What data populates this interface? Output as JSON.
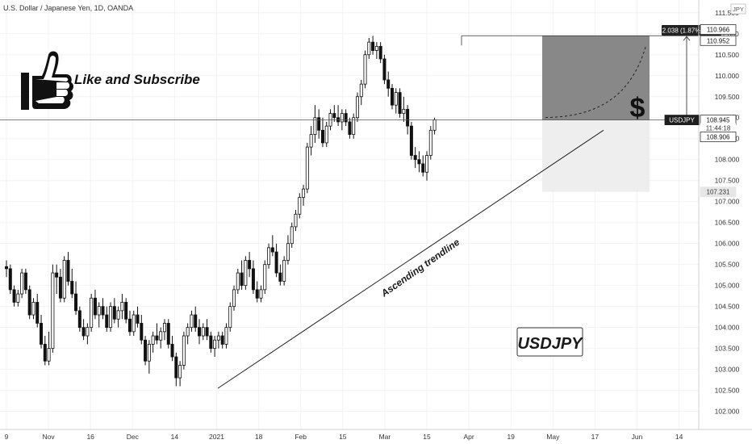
{
  "header": {
    "title": "U.S. Dollar / Japanese Yen, 1D, OANDA"
  },
  "currency": "JPY",
  "like_text": "Like and Subscribe",
  "badge": "USDJPY",
  "trendline_label": "Ascending trendline",
  "dollar_sign": "$",
  "measure_label": "2.038 (1.87%) 203.8",
  "price_tags": [
    {
      "label": "110.966",
      "value": 110.966,
      "style": "white"
    },
    {
      "label": "110.952",
      "value": 110.952,
      "style": "white"
    },
    {
      "label": "USDJPY",
      "value": 108.945,
      "style": "dark"
    },
    {
      "label": "108.945",
      "value": 108.945,
      "style": "white"
    },
    {
      "label": "11:44:18",
      "value": 108.945,
      "style": "plain"
    },
    {
      "label": "108.906",
      "value": 108.906,
      "style": "white"
    },
    {
      "label": "107.231",
      "value": 107.231,
      "style": "gray"
    }
  ],
  "chart_data": {
    "type": "candlestick",
    "ylim": [
      101.8,
      111.65
    ],
    "y_ticks": [
      "102.000",
      "102.500",
      "103.000",
      "103.500",
      "104.000",
      "104.500",
      "105.000",
      "105.500",
      "106.000",
      "106.500",
      "107.000",
      "107.500",
      "108.000",
      "108.500",
      "109.000",
      "109.500",
      "110.000",
      "110.500",
      "111.000",
      "111.500"
    ],
    "x_ticks": [
      "9",
      "Nov",
      "16",
      "Dec",
      "14",
      "2021",
      "18",
      "Feb",
      "15",
      "Mar",
      "15",
      "Apr",
      "19",
      "May",
      "17",
      "Jun",
      "14"
    ],
    "last_price": 108.945,
    "position": {
      "entry": 108.945,
      "target": 110.952,
      "stop": 107.231
    },
    "trendline": {
      "from": 102.55,
      "to": 108.7
    },
    "candles": [
      [
        105.45,
        105.6,
        105.2,
        105.4
      ],
      [
        105.4,
        105.5,
        104.8,
        104.9
      ],
      [
        104.9,
        105.0,
        104.5,
        104.6
      ],
      [
        104.6,
        104.9,
        104.5,
        104.8
      ],
      [
        104.8,
        105.4,
        104.7,
        105.3
      ],
      [
        105.3,
        105.4,
        104.8,
        104.9
      ],
      [
        104.9,
        105.0,
        104.2,
        104.3
      ],
      [
        104.3,
        104.7,
        104.2,
        104.6
      ],
      [
        104.6,
        104.8,
        104.0,
        104.1
      ],
      [
        104.1,
        104.3,
        103.5,
        103.6
      ],
      [
        103.6,
        103.8,
        103.1,
        103.2
      ],
      [
        103.2,
        103.9,
        103.1,
        103.5
      ],
      [
        103.5,
        105.5,
        103.4,
        105.3
      ],
      [
        105.3,
        105.5,
        104.8,
        105.2
      ],
      [
        105.2,
        105.4,
        104.6,
        104.7
      ],
      [
        104.7,
        105.7,
        104.6,
        105.6
      ],
      [
        105.6,
        105.8,
        105.0,
        105.1
      ],
      [
        105.1,
        105.4,
        104.7,
        104.8
      ],
      [
        104.8,
        105.1,
        104.3,
        104.4
      ],
      [
        104.4,
        104.5,
        103.9,
        104.0
      ],
      [
        104.0,
        104.2,
        103.7,
        103.8
      ],
      [
        103.8,
        104.1,
        103.6,
        104.0
      ],
      [
        104.0,
        104.8,
        103.9,
        104.7
      ],
      [
        104.7,
        104.9,
        104.2,
        104.3
      ],
      [
        104.3,
        104.6,
        104.0,
        104.5
      ],
      [
        104.5,
        104.7,
        104.2,
        104.3
      ],
      [
        104.3,
        104.5,
        103.9,
        104.0
      ],
      [
        104.0,
        104.6,
        103.9,
        104.5
      ],
      [
        104.5,
        104.7,
        104.1,
        104.2
      ],
      [
        104.2,
        104.5,
        104.0,
        104.4
      ],
      [
        104.4,
        104.8,
        104.2,
        104.6
      ],
      [
        104.6,
        104.7,
        104.1,
        104.2
      ],
      [
        104.2,
        104.4,
        103.8,
        103.9
      ],
      [
        103.9,
        104.4,
        103.8,
        104.3
      ],
      [
        104.3,
        104.5,
        104.0,
        104.1
      ],
      [
        104.1,
        104.3,
        103.6,
        103.7
      ],
      [
        103.7,
        103.8,
        103.1,
        103.2
      ],
      [
        103.2,
        103.7,
        102.9,
        103.6
      ],
      [
        103.6,
        103.9,
        103.4,
        103.8
      ],
      [
        103.8,
        104.1,
        103.6,
        103.7
      ],
      [
        103.7,
        104.0,
        103.5,
        103.9
      ],
      [
        103.9,
        104.2,
        103.7,
        104.1
      ],
      [
        104.1,
        104.2,
        103.5,
        103.6
      ],
      [
        103.6,
        103.8,
        103.2,
        103.3
      ],
      [
        103.3,
        103.4,
        102.6,
        102.8
      ],
      [
        102.8,
        103.2,
        102.6,
        103.1
      ],
      [
        103.1,
        103.9,
        103.0,
        103.8
      ],
      [
        103.8,
        104.1,
        103.6,
        104.0
      ],
      [
        104.0,
        104.4,
        103.9,
        104.3
      ],
      [
        104.3,
        104.5,
        103.9,
        104.0
      ],
      [
        104.0,
        104.2,
        103.6,
        103.8
      ],
      [
        103.8,
        104.1,
        103.7,
        104.0
      ],
      [
        104.0,
        104.2,
        103.7,
        103.8
      ],
      [
        103.8,
        103.9,
        103.4,
        103.5
      ],
      [
        103.5,
        103.8,
        103.3,
        103.7
      ],
      [
        103.7,
        103.9,
        103.5,
        103.8
      ],
      [
        103.8,
        103.9,
        103.5,
        103.6
      ],
      [
        103.6,
        104.1,
        103.5,
        104.0
      ],
      [
        104.0,
        104.6,
        103.9,
        104.5
      ],
      [
        104.5,
        105.0,
        104.4,
        104.9
      ],
      [
        104.9,
        105.4,
        104.8,
        105.3
      ],
      [
        105.3,
        105.6,
        104.9,
        105.0
      ],
      [
        105.0,
        105.7,
        104.9,
        105.6
      ],
      [
        105.6,
        105.8,
        105.2,
        105.4
      ],
      [
        105.4,
        105.6,
        104.8,
        104.9
      ],
      [
        104.9,
        105.1,
        104.6,
        104.7
      ],
      [
        104.7,
        105.0,
        104.6,
        104.9
      ],
      [
        104.9,
        105.6,
        104.8,
        105.5
      ],
      [
        105.5,
        106.0,
        105.4,
        105.9
      ],
      [
        105.9,
        106.2,
        105.7,
        105.8
      ],
      [
        105.8,
        106.0,
        105.2,
        105.3
      ],
      [
        105.3,
        105.5,
        105.0,
        105.1
      ],
      [
        105.1,
        105.7,
        105.0,
        105.6
      ],
      [
        105.6,
        106.2,
        105.5,
        106.0
      ],
      [
        106.0,
        106.5,
        105.9,
        106.4
      ],
      [
        106.4,
        106.8,
        106.3,
        106.7
      ],
      [
        106.7,
        107.2,
        106.6,
        107.1
      ],
      [
        107.1,
        107.4,
        106.9,
        107.3
      ],
      [
        107.3,
        108.4,
        107.2,
        108.3
      ],
      [
        108.3,
        108.8,
        108.1,
        108.6
      ],
      [
        108.6,
        109.3,
        108.4,
        109.0
      ],
      [
        109.0,
        109.2,
        108.5,
        108.7
      ],
      [
        108.7,
        109.0,
        108.3,
        108.4
      ],
      [
        108.4,
        108.9,
        108.3,
        108.8
      ],
      [
        108.8,
        109.2,
        108.7,
        109.1
      ],
      [
        109.1,
        109.3,
        108.9,
        109.0
      ],
      [
        109.0,
        109.3,
        108.8,
        108.9
      ],
      [
        108.9,
        109.2,
        108.7,
        109.1
      ],
      [
        109.1,
        109.2,
        108.8,
        108.9
      ],
      [
        108.9,
        109.0,
        108.5,
        108.6
      ],
      [
        108.6,
        109.1,
        108.5,
        109.0
      ],
      [
        109.0,
        109.6,
        108.9,
        109.5
      ],
      [
        109.5,
        109.9,
        109.3,
        109.8
      ],
      [
        109.8,
        110.6,
        109.7,
        110.5
      ],
      [
        110.5,
        110.9,
        110.4,
        110.8
      ],
      [
        110.8,
        110.95,
        110.5,
        110.6
      ],
      [
        110.6,
        110.8,
        110.4,
        110.7
      ],
      [
        110.7,
        110.8,
        110.3,
        110.4
      ],
      [
        110.4,
        110.5,
        109.8,
        109.9
      ],
      [
        109.9,
        110.1,
        109.5,
        109.7
      ],
      [
        109.7,
        109.8,
        109.2,
        109.3
      ],
      [
        109.3,
        109.7,
        109.1,
        109.6
      ],
      [
        109.6,
        109.7,
        109.0,
        109.1
      ],
      [
        109.1,
        109.5,
        108.9,
        109.2
      ],
      [
        109.2,
        109.3,
        108.6,
        108.8
      ],
      [
        108.8,
        108.9,
        108.0,
        108.1
      ],
      [
        108.1,
        108.3,
        107.8,
        108.0
      ],
      [
        108.0,
        108.2,
        107.7,
        107.9
      ],
      [
        107.9,
        108.1,
        107.6,
        107.7
      ],
      [
        107.7,
        108.2,
        107.5,
        108.1
      ],
      [
        108.1,
        108.8,
        108.0,
        108.7
      ],
      [
        108.7,
        109.0,
        108.6,
        108.945
      ]
    ]
  }
}
